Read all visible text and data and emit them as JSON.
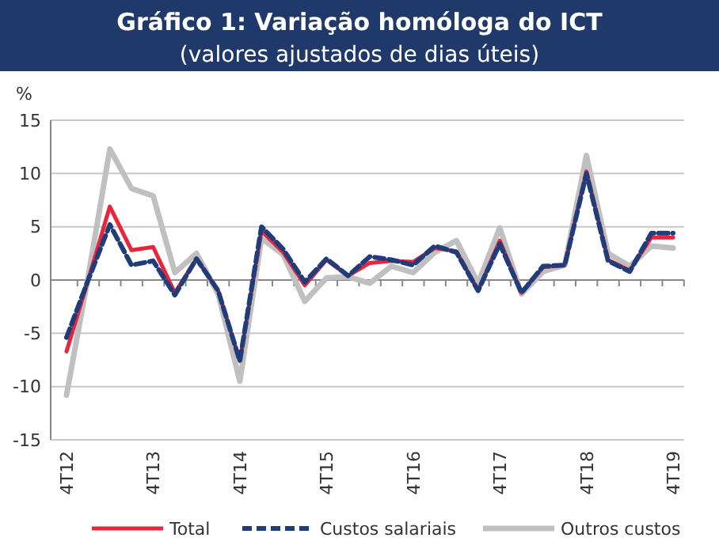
{
  "chart_data": {
    "type": "line",
    "title": "Gráfico 1: Variação homóloga do ICT",
    "subtitle": "(valores ajustados de dias úteis)",
    "ylabel": "%",
    "categories": [
      "4T12",
      null,
      null,
      null,
      "4T13",
      null,
      null,
      null,
      "4T14",
      null,
      null,
      null,
      "4T15",
      null,
      null,
      null,
      "4T16",
      null,
      null,
      null,
      "4T17",
      null,
      null,
      null,
      "4T18",
      null,
      null,
      null,
      "4T19"
    ],
    "series": [
      {
        "name": "Outros custos",
        "color": "#c0c0c0",
        "line_style": "solid",
        "values": [
          -10.8,
          0.3,
          12.3,
          8.6,
          7.9,
          0.7,
          2.5,
          -1.3,
          -9.5,
          3.9,
          2.4,
          -2.0,
          0.2,
          0.3,
          -0.3,
          1.3,
          0.7,
          2.6,
          3.7,
          -0.3,
          4.9,
          -1.3,
          0.8,
          1.4,
          11.7,
          2.5,
          1.3,
          3.2,
          3.0
        ]
      },
      {
        "name": "Total",
        "color": "#e8253a",
        "line_style": "solid",
        "values": [
          -6.7,
          0,
          6.9,
          2.8,
          3.1,
          -1.2,
          2.0,
          -1.0,
          -7.6,
          4.6,
          2.6,
          -0.5,
          1.9,
          0.4,
          1.6,
          1.8,
          1.7,
          3.0,
          2.7,
          -1.0,
          3.7,
          -1.2,
          1.2,
          1.4,
          10.2,
          1.9,
          0.9,
          4.0,
          4.0
        ]
      },
      {
        "name": "Custos salariais",
        "color": "#1f3d7a",
        "line_style": "dashed",
        "values": [
          -5.4,
          0,
          5.2,
          1.4,
          1.8,
          -1.4,
          2.0,
          -1.0,
          -7.6,
          5.0,
          2.9,
          -0.2,
          2.0,
          0.4,
          2.2,
          1.9,
          1.4,
          3.2,
          2.6,
          -1.0,
          3.4,
          -1.2,
          1.3,
          1.4,
          10.0,
          1.8,
          0.8,
          4.4,
          4.4
        ]
      }
    ],
    "ylim": [
      -15,
      15
    ],
    "yticks": [
      -15,
      -10,
      -5,
      0,
      5,
      10,
      15
    ],
    "grid": "y",
    "legend": "bottom"
  }
}
